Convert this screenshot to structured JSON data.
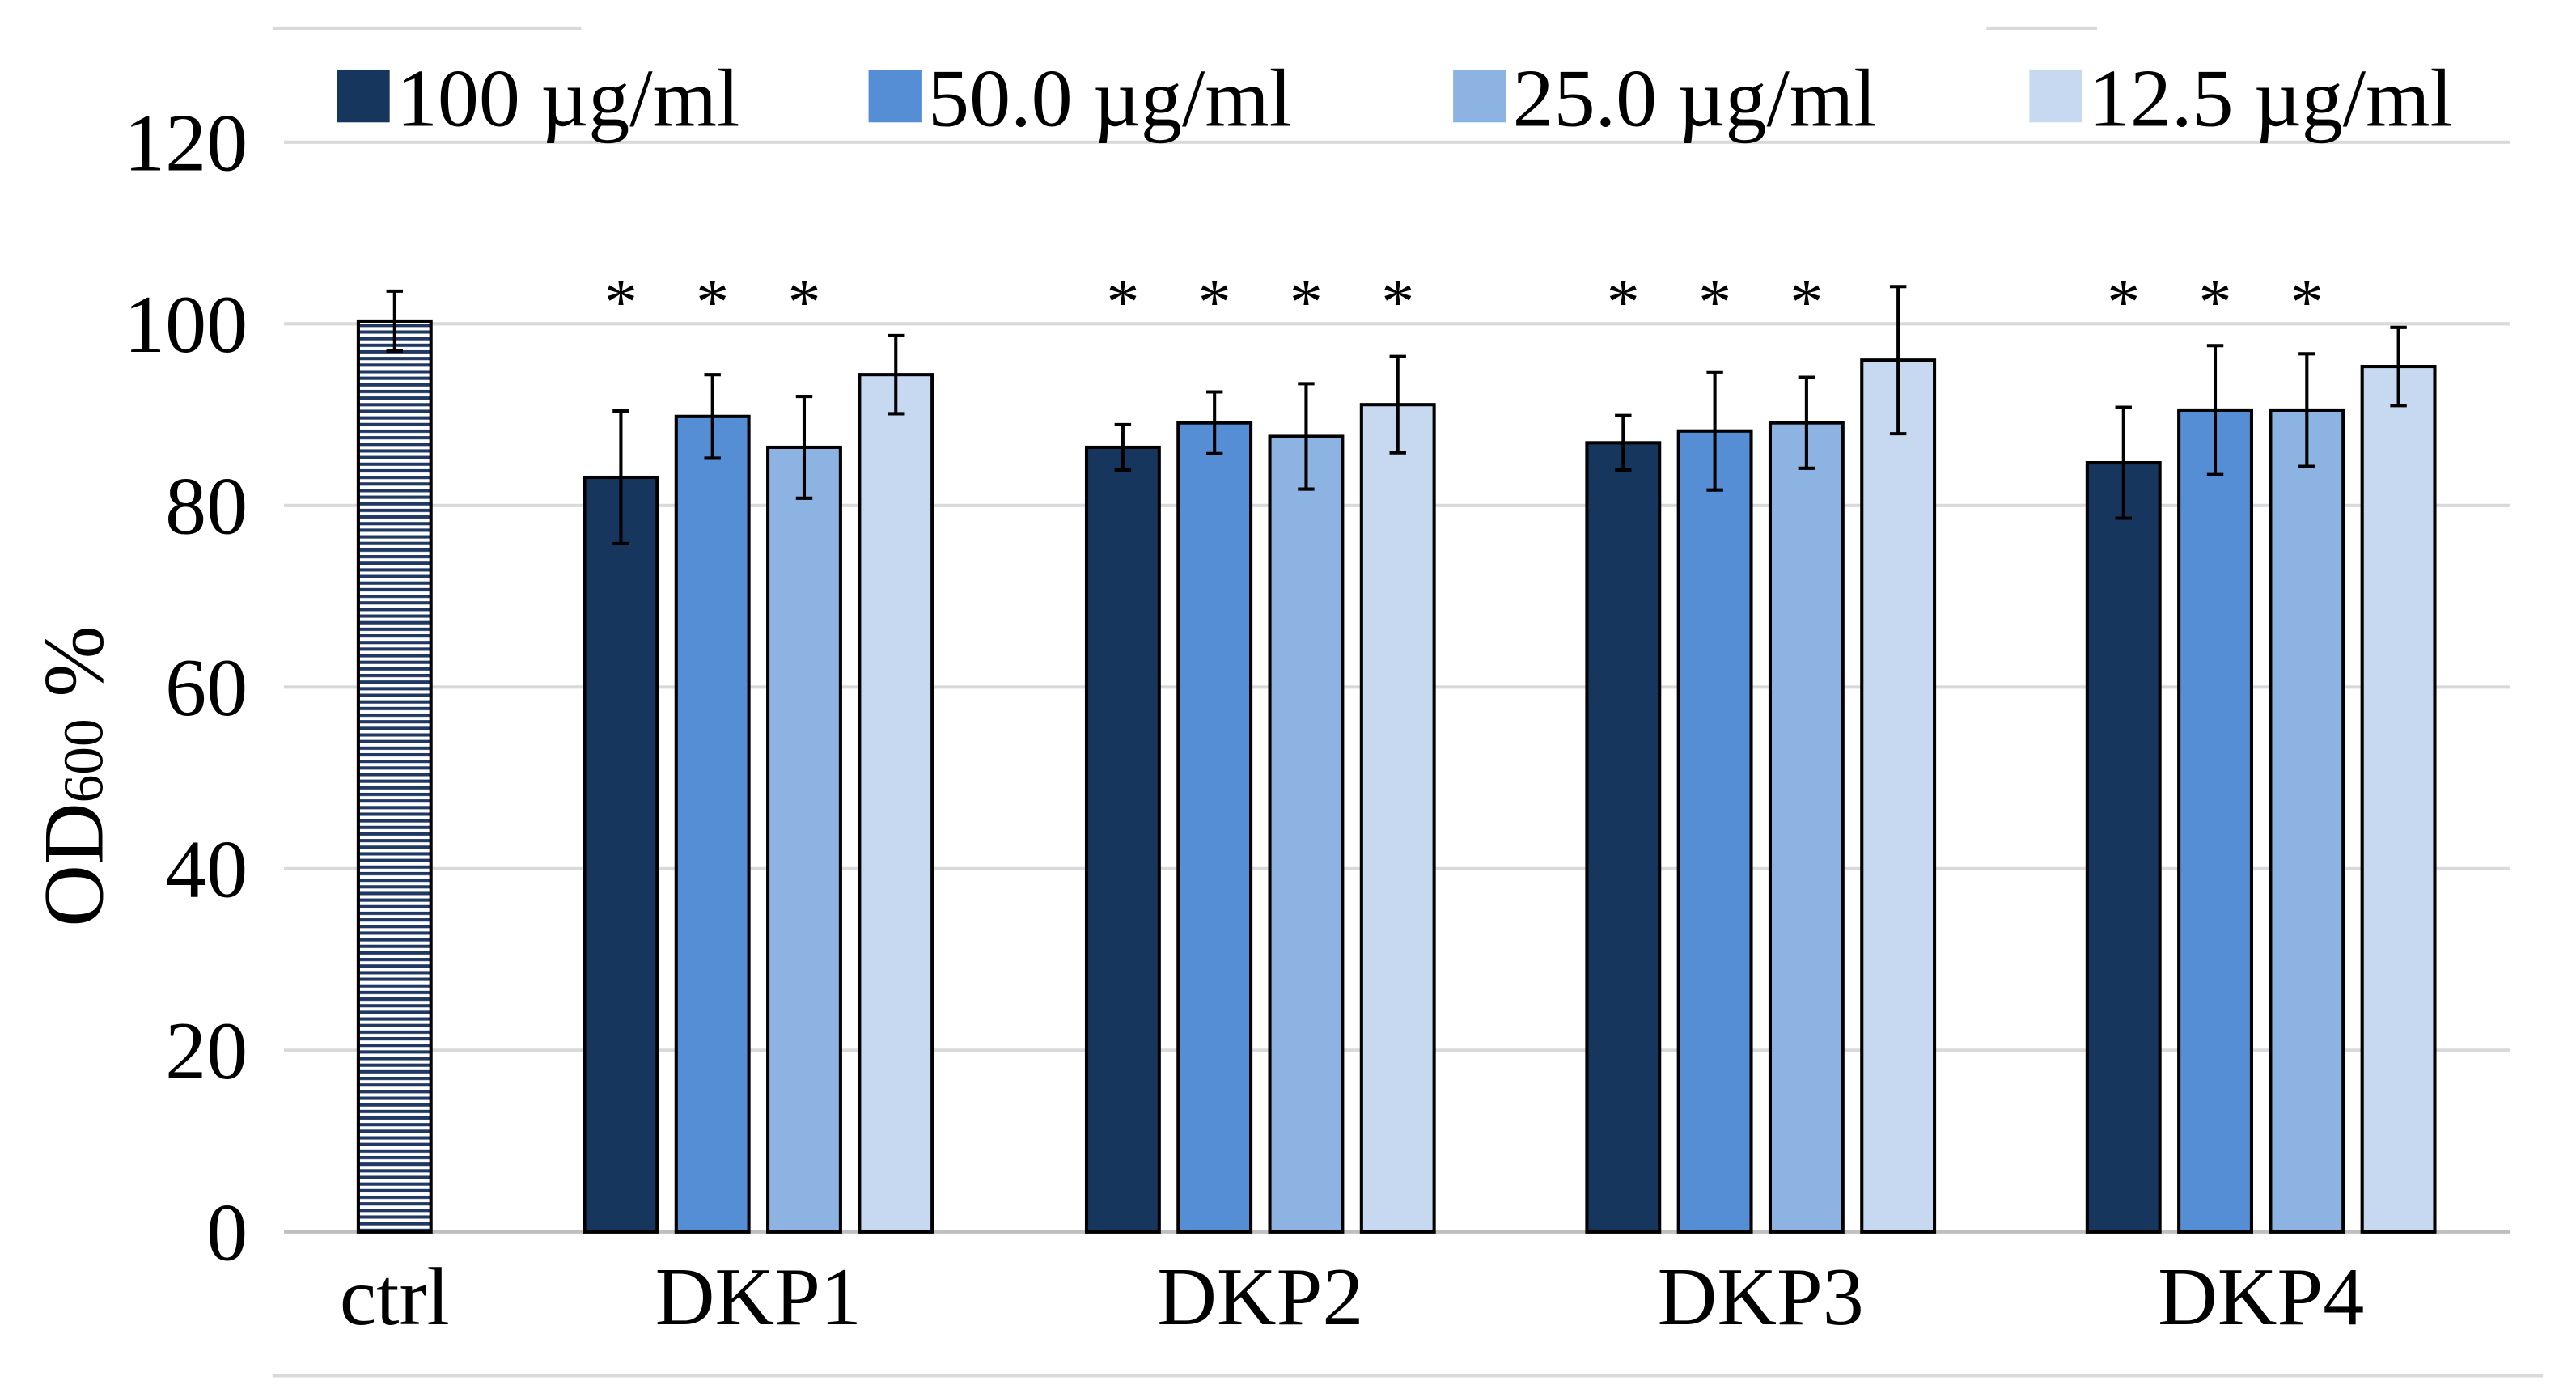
{
  "chart_data": {
    "type": "bar",
    "title": "",
    "xlabel": "",
    "ylabel": "OD",
    "ylabel_subscript": "600",
    "ylabel_suffix": " %",
    "ylim": [
      0,
      120
    ],
    "yticks": [
      "0",
      "20",
      "40",
      "60",
      "80",
      "100",
      "120"
    ],
    "grid": true,
    "legend_position": "top",
    "control": {
      "label": "ctrl",
      "value": 100.3,
      "error": 3.3,
      "color": "#1f3864",
      "pattern": "horizontal-stripes"
    },
    "categories": [
      "DKP1",
      "DKP2",
      "DKP3",
      "DKP4"
    ],
    "series": [
      {
        "name": "100 µg/ml",
        "color": "#17365d",
        "values": [
          83.1,
          86.4,
          86.9,
          84.7
        ],
        "errors": [
          7.3,
          2.5,
          3.0,
          6.1
        ]
      },
      {
        "name": "50.0 µg/ml",
        "color": "#558ed5",
        "values": [
          89.8,
          89.1,
          88.2,
          90.5
        ],
        "errors": [
          4.6,
          3.4,
          6.5,
          7.1
        ]
      },
      {
        "name": "25.0 µg/ml",
        "color": "#8db3e2",
        "values": [
          86.4,
          87.6,
          89.1,
          90.5
        ],
        "errors": [
          5.6,
          5.8,
          5.0,
          6.2
        ]
      },
      {
        "name": "12.5 µg/ml",
        "color": "#c6d9f1",
        "values": [
          94.4,
          91.1,
          96.0,
          95.3
        ],
        "errors": [
          4.3,
          5.3,
          8.1,
          4.3
        ]
      }
    ],
    "significance_marker": "*",
    "significant": [
      [
        true,
        true,
        true,
        false
      ],
      [
        true,
        true,
        true,
        true
      ],
      [
        true,
        true,
        true,
        false
      ],
      [
        true,
        true,
        true,
        false
      ]
    ]
  }
}
